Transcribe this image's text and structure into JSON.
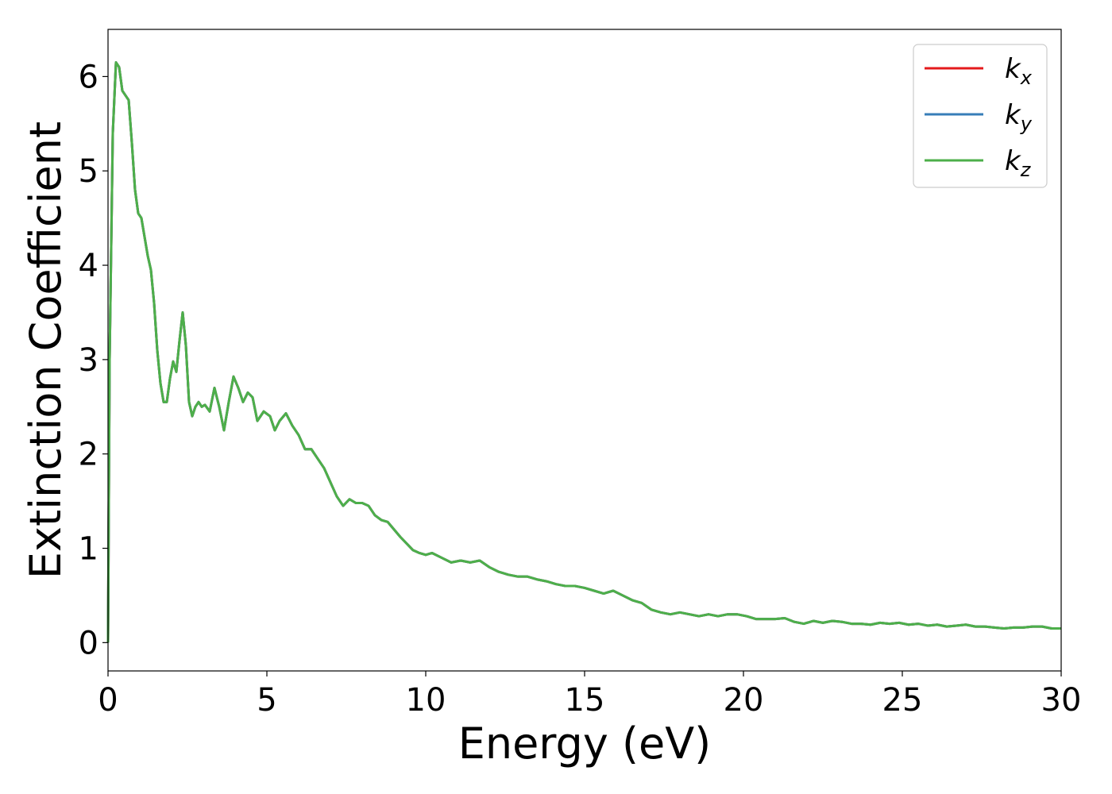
{
  "chart_data": {
    "type": "line",
    "xlabel": "Energy (eV)",
    "ylabel": "Extinction Coefficient",
    "xlim": [
      0,
      30
    ],
    "ylim": [
      -0.3,
      6.5
    ],
    "xticks": [
      0,
      5,
      10,
      15,
      20,
      25,
      30
    ],
    "yticks": [
      0,
      1,
      2,
      3,
      4,
      5,
      6
    ],
    "grid": false,
    "legend_position": "top-right",
    "series": [
      {
        "name": "k",
        "subscript": "x",
        "color": "#e41a1c",
        "values": "shared"
      },
      {
        "name": "k",
        "subscript": "y",
        "color": "#377eb8",
        "values": "shared"
      },
      {
        "name": "k",
        "subscript": "z",
        "color": "#4daf4a",
        "values": "shared"
      }
    ],
    "x": [
      0.0,
      0.05,
      0.15,
      0.25,
      0.35,
      0.45,
      0.55,
      0.65,
      0.75,
      0.85,
      0.95,
      1.05,
      1.15,
      1.25,
      1.35,
      1.45,
      1.55,
      1.65,
      1.75,
      1.85,
      1.95,
      2.05,
      2.15,
      2.25,
      2.35,
      2.45,
      2.55,
      2.65,
      2.75,
      2.85,
      2.95,
      3.05,
      3.2,
      3.35,
      3.5,
      3.65,
      3.8,
      3.95,
      4.1,
      4.25,
      4.4,
      4.55,
      4.7,
      4.9,
      5.1,
      5.25,
      5.4,
      5.6,
      5.8,
      6.0,
      6.2,
      6.4,
      6.6,
      6.8,
      7.0,
      7.2,
      7.4,
      7.6,
      7.8,
      8.0,
      8.2,
      8.4,
      8.6,
      8.8,
      9.0,
      9.2,
      9.4,
      9.6,
      9.8,
      10.0,
      10.2,
      10.5,
      10.8,
      11.1,
      11.4,
      11.7,
      12.0,
      12.3,
      12.6,
      12.9,
      13.2,
      13.5,
      13.8,
      14.1,
      14.4,
      14.7,
      15.0,
      15.3,
      15.6,
      15.9,
      16.2,
      16.5,
      16.8,
      17.1,
      17.4,
      17.7,
      18.0,
      18.3,
      18.6,
      18.9,
      19.2,
      19.5,
      19.8,
      20.1,
      20.4,
      20.7,
      21.0,
      21.3,
      21.6,
      21.9,
      22.2,
      22.5,
      22.8,
      23.1,
      23.4,
      23.7,
      24.0,
      24.3,
      24.6,
      24.9,
      25.2,
      25.5,
      25.8,
      26.1,
      26.4,
      26.7,
      27.0,
      27.3,
      27.6,
      27.9,
      28.2,
      28.5,
      28.8,
      29.1,
      29.4,
      29.7,
      30.0
    ],
    "y": [
      0.0,
      3.0,
      5.4,
      6.15,
      6.1,
      5.85,
      5.8,
      5.75,
      5.3,
      4.8,
      4.55,
      4.5,
      4.3,
      4.1,
      3.95,
      3.6,
      3.1,
      2.75,
      2.55,
      2.55,
      2.8,
      2.98,
      2.87,
      3.2,
      3.5,
      3.15,
      2.55,
      2.4,
      2.5,
      2.55,
      2.5,
      2.52,
      2.45,
      2.7,
      2.5,
      2.25,
      2.55,
      2.82,
      2.7,
      2.55,
      2.65,
      2.6,
      2.35,
      2.45,
      2.4,
      2.25,
      2.35,
      2.43,
      2.3,
      2.2,
      2.05,
      2.05,
      1.95,
      1.85,
      1.7,
      1.55,
      1.45,
      1.52,
      1.48,
      1.48,
      1.45,
      1.35,
      1.3,
      1.28,
      1.2,
      1.12,
      1.05,
      0.98,
      0.95,
      0.93,
      0.95,
      0.9,
      0.85,
      0.87,
      0.85,
      0.87,
      0.8,
      0.75,
      0.72,
      0.7,
      0.7,
      0.67,
      0.65,
      0.62,
      0.6,
      0.6,
      0.58,
      0.55,
      0.52,
      0.55,
      0.5,
      0.45,
      0.42,
      0.35,
      0.32,
      0.3,
      0.32,
      0.3,
      0.28,
      0.3,
      0.28,
      0.3,
      0.3,
      0.28,
      0.25,
      0.25,
      0.25,
      0.26,
      0.22,
      0.2,
      0.23,
      0.21,
      0.23,
      0.22,
      0.2,
      0.2,
      0.19,
      0.21,
      0.2,
      0.21,
      0.19,
      0.2,
      0.18,
      0.19,
      0.17,
      0.18,
      0.19,
      0.17,
      0.17,
      0.16,
      0.15,
      0.16,
      0.16,
      0.17,
      0.17,
      0.15,
      0.15
    ]
  }
}
